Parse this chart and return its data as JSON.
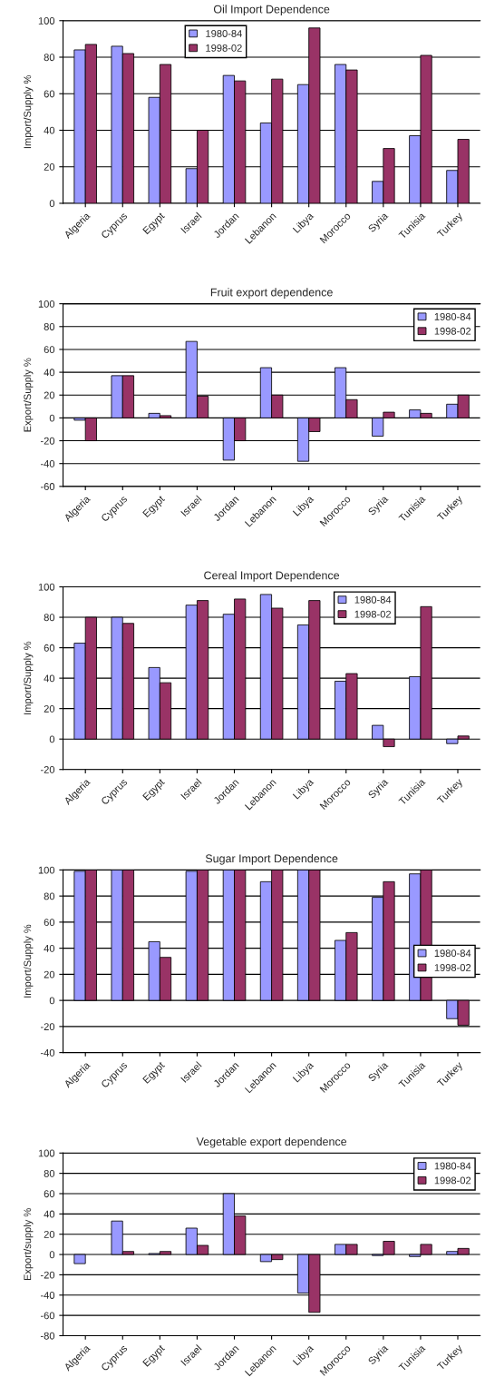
{
  "chart_data": [
    {
      "type": "bar",
      "title": "Oil Import Dependence",
      "ylabel": "Import/Supply %",
      "categories": [
        "Algeria",
        "Cyprus",
        "Egypt",
        "Israel",
        "Jordan",
        "Lebanon",
        "Libya",
        "Morocco",
        "Syria",
        "Tunisia",
        "Turkey"
      ],
      "series": [
        {
          "name": "1980-84",
          "color": "#9999ff",
          "values": [
            84,
            86,
            58,
            19,
            70,
            44,
            65,
            76,
            12,
            37,
            18
          ]
        },
        {
          "name": "1998-02",
          "color": "#993366",
          "values": [
            87,
            82,
            76,
            40,
            67,
            68,
            96,
            73,
            30,
            81,
            35
          ]
        }
      ],
      "ylim": [
        0,
        100
      ],
      "yticks": [
        0,
        20,
        40,
        60,
        80,
        100
      ],
      "grid": "y",
      "legend": "top"
    },
    {
      "type": "bar",
      "title": "Fruit export dependence",
      "ylabel": "Export/Supply %",
      "categories": [
        "Algeria",
        "Cyprus",
        "Egypt",
        "Israel",
        "Jordan",
        "Lebanon",
        "Libya",
        "Morocco",
        "Syria",
        "Tunisia",
        "Turkey"
      ],
      "series": [
        {
          "name": "1980-84",
          "color": "#9999ff",
          "values": [
            -2,
            37,
            4,
            67,
            -37,
            44,
            -38,
            44,
            -16,
            7,
            12
          ]
        },
        {
          "name": "1998-02",
          "color": "#993366",
          "values": [
            -20,
            37,
            2,
            19,
            -20,
            20,
            -12,
            16,
            5,
            4,
            20
          ]
        }
      ],
      "ylim": [
        -60,
        100
      ],
      "yticks": [
        -60,
        -40,
        -20,
        0,
        20,
        40,
        60,
        80,
        100
      ],
      "grid": "y",
      "legend": "top right"
    },
    {
      "type": "bar",
      "title": "Cereal Import Dependence",
      "ylabel": "Import/Supply %",
      "categories": [
        "Algeria",
        "Cyprus",
        "Egypt",
        "Israel",
        "Jordan",
        "Lebanon",
        "Libya",
        "Morocco",
        "Syria",
        "Tunisia",
        "Turkey"
      ],
      "series": [
        {
          "name": "1980-84",
          "color": "#9999ff",
          "values": [
            63,
            80,
            47,
            88,
            82,
            95,
            75,
            38,
            9,
            41,
            -3
          ]
        },
        {
          "name": "1998-02",
          "color": "#993366",
          "values": [
            80,
            76,
            37,
            91,
            92,
            86,
            91,
            43,
            -5,
            87,
            2
          ]
        }
      ],
      "ylim": [
        -20,
        100
      ],
      "yticks": [
        -20,
        0,
        20,
        40,
        60,
        80,
        100
      ],
      "grid": "y",
      "legend": "top"
    },
    {
      "type": "bar",
      "title": "Sugar Import Dependence",
      "ylabel": "Import/Supply %",
      "categories": [
        "Algeria",
        "Cyprus",
        "Egypt",
        "Israel",
        "Jordan",
        "Lebanon",
        "Libya",
        "Morocco",
        "Syria",
        "Tunisia",
        "Turkey"
      ],
      "series": [
        {
          "name": "1980-84",
          "color": "#9999ff",
          "values": [
            99,
            100,
            45,
            99,
            100,
            91,
            100,
            46,
            79,
            97,
            -14
          ]
        },
        {
          "name": "1998-02",
          "color": "#993366",
          "values": [
            100,
            100,
            33,
            100,
            100,
            100,
            100,
            52,
            91,
            100,
            -19
          ]
        }
      ],
      "ylim": [
        -40,
        100
      ],
      "yticks": [
        -40,
        -20,
        0,
        20,
        40,
        60,
        80,
        100
      ],
      "grid": "y",
      "legend": "right"
    },
    {
      "type": "bar",
      "title": "Vegetable export dependence",
      "ylabel": "Export/supply %",
      "categories": [
        "Algeria",
        "Cyprus",
        "Egypt",
        "Israel",
        "Jordan",
        "Lebanon",
        "Libya",
        "Morocco",
        "Syria",
        "Tunisia",
        "Turkey"
      ],
      "series": [
        {
          "name": "1980-84",
          "color": "#9999ff",
          "values": [
            -9,
            33,
            1,
            26,
            60,
            -7,
            -38,
            10,
            -1,
            -2,
            3
          ]
        },
        {
          "name": "1998-02",
          "color": "#993366",
          "values": [
            null,
            3,
            3,
            9,
            38,
            -5,
            -57,
            10,
            13,
            10,
            6
          ]
        }
      ],
      "ylim": [
        -80,
        100
      ],
      "yticks": [
        -80,
        -60,
        -40,
        -20,
        0,
        20,
        40,
        60,
        80,
        100
      ],
      "grid": "y",
      "legend": "top right"
    }
  ]
}
